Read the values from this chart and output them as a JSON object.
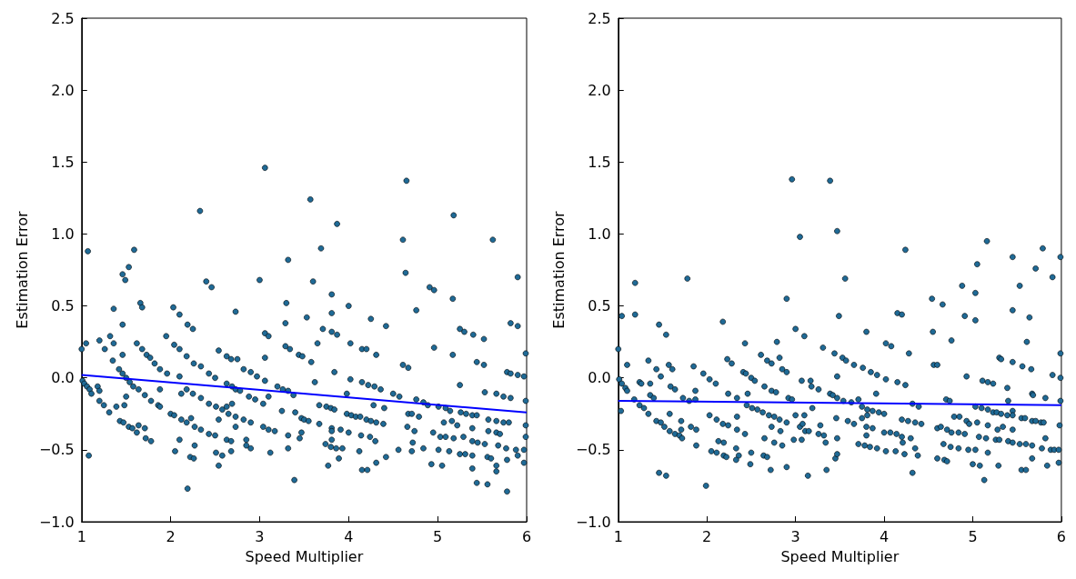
{
  "chart_data": [
    {
      "type": "scatter",
      "xlabel": "Speed Multiplier",
      "ylabel": "Estimation Error",
      "xlim": [
        1,
        6
      ],
      "xticks": [
        1,
        2,
        3,
        4,
        5,
        6
      ],
      "ylim": [
        -1,
        2.5
      ],
      "yticks": [
        {
          "value": -1,
          "label": "−1.0"
        },
        {
          "value": -0.5,
          "label": "−0.5"
        },
        {
          "value": 0,
          "label": "0.0"
        },
        0.5,
        {
          "value": 1,
          "label": "1.0"
        },
        1.5,
        {
          "value": 2,
          "label": "2.0"
        },
        2.5
      ],
      "series": [
        {
          "marker": "circle",
          "color": "#1f6a96",
          "x": [
            1.07,
            1.0,
            1.05,
            1.01,
            1.03,
            1.06,
            1.09,
            1.11,
            1.08,
            1.2,
            1.26,
            1.32,
            1.36,
            1.36,
            1.35,
            1.18,
            1.2,
            1.2,
            1.25,
            1.31,
            1.39,
            1.46,
            1.49,
            1.53,
            1.59,
            1.46,
            1.46,
            1.42,
            1.46,
            1.5,
            1.54,
            1.5,
            1.48,
            1.43,
            1.47,
            1.53,
            1.57,
            1.62,
            1.64,
            1.71,
            1.72,
            1.78,
            1.66,
            1.68,
            1.62,
            1.68,
            1.73,
            1.77,
            1.82,
            1.88,
            1.58,
            1.64,
            1.71,
            1.78,
            1.86,
            1.88,
            1.88,
            1.95,
            1.96,
            2.03,
            2.1,
            2.04,
            2.1,
            2.1,
            2.12,
            2.0,
            2.04,
            2.12,
            2.18,
            2.23,
            2.1,
            2.05,
            2.19,
            2.19,
            2.25,
            2.18,
            2.26,
            2.34,
            2.18,
            2.25,
            2.34,
            2.27,
            2.34,
            2.43,
            2.27,
            2.22,
            2.26,
            2.33,
            2.4,
            2.46,
            2.43,
            2.5,
            2.43,
            2.51,
            2.58,
            2.54,
            2.5,
            2.51,
            2.58,
            2.54,
            2.54,
            2.63,
            2.68,
            2.75,
            2.63,
            2.69,
            2.73,
            2.78,
            2.63,
            2.69,
            2.65,
            2.73,
            2.82,
            2.73,
            2.63,
            2.68,
            2.68,
            2.73,
            2.82,
            2.9,
            2.97,
            2.88,
            2.95,
            3.04,
            2.9,
            3.04,
            3.1,
            3.17,
            2.85,
            2.85,
            2.9,
            3.12,
            3.0,
            3.06,
            3.06,
            3.1,
            3.06,
            3.06,
            3.1,
            3.2,
            3.25,
            3.32,
            3.3,
            3.29,
            3.29,
            3.34,
            3.26,
            3.32,
            3.38,
            3.32,
            3.32,
            3.39,
            3.45,
            3.4,
            3.44,
            3.48,
            3.53,
            3.47,
            3.5,
            3.55,
            3.47,
            3.57,
            3.69,
            3.6,
            3.65,
            3.58,
            3.62,
            3.67,
            3.75,
            3.8,
            3.84,
            3.67,
            3.81,
            3.81,
            3.91,
            4.0,
            3.81,
            3.74,
            3.8,
            3.86,
            3.93,
            3.89,
            3.77,
            3.81,
            3.81,
            3.71,
            3.81,
            3.87,
            3.87,
            4.0,
            3.84,
            4.02,
            4.02,
            3.98,
            3.98,
            4.03,
            4.08,
            4.13,
            4.2,
            4.25,
            4.31,
            4.39,
            4.14,
            4.24,
            4.3,
            4.12,
            4.15,
            4.21,
            4.31,
            4.42,
            4.15,
            4.2,
            4.31,
            4.25,
            4.42,
            4.15,
            4.22,
            4.29,
            4.36,
            4.28,
            4.4,
            4.5,
            4.57,
            4.61,
            4.65,
            4.64,
            4.61,
            4.67,
            4.76,
            4.76,
            4.84,
            4.89,
            4.67,
            4.71,
            4.79,
            4.66,
            4.74,
            4.72,
            4.56,
            4.71,
            4.84,
            4.93,
            5.05,
            4.91,
            4.96,
            4.96,
            5.01,
            5.09,
            5.14,
            4.95,
            5.03,
            5.09,
            5.07,
            5.16,
            5.22,
            5.01,
            5.13,
            5.18,
            5.25,
            5.31,
            5.39,
            5.18,
            5.17,
            5.17,
            5.25,
            5.25,
            5.3,
            5.4,
            5.52,
            5.44,
            5.52,
            5.26,
            5.32,
            5.39,
            5.44,
            5.39,
            5.29,
            5.39,
            5.45,
            5.53,
            5.39,
            5.44,
            5.56,
            5.56,
            5.6,
            5.66,
            5.66,
            5.68,
            5.77,
            5.78,
            5.78,
            5.62,
            5.53,
            5.66,
            5.74,
            5.82,
            5.57,
            5.66,
            5.74,
            5.8,
            5.57,
            5.66,
            5.7,
            5.78,
            5.82,
            5.82,
            5.9,
            5.9,
            5.9,
            5.97,
            5.99,
            5.99,
            5.99,
            5.99,
            5.88,
            5.97,
            5.9,
            5.97
          ],
          "values": [
            0.88,
            0.2,
            0.24,
            -0.02,
            -0.04,
            -0.06,
            -0.08,
            -0.11,
            -0.54,
            0.26,
            0.2,
            0.29,
            0.48,
            0.24,
            0.12,
            -0.06,
            -0.09,
            -0.16,
            -0.19,
            -0.24,
            -0.2,
            0.72,
            0.68,
            0.77,
            0.89,
            0.37,
            0.16,
            0.06,
            0.03,
            0.0,
            -0.03,
            -0.13,
            -0.19,
            -0.3,
            -0.31,
            -0.34,
            -0.35,
            -0.38,
            -0.33,
            -0.35,
            -0.42,
            -0.44,
            0.52,
            0.49,
            0.24,
            0.2,
            0.16,
            0.14,
            0.1,
            0.06,
            -0.06,
            -0.08,
            -0.12,
            -0.16,
            -0.19,
            -0.2,
            -0.08,
            0.29,
            0.03,
            0.49,
            0.44,
            0.23,
            0.2,
            0.01,
            -0.11,
            -0.25,
            -0.26,
            -0.29,
            -0.31,
            -0.28,
            -0.43,
            -0.51,
            -0.77,
            0.37,
            0.34,
            0.15,
            0.1,
            0.08,
            -0.08,
            -0.11,
            -0.14,
            -0.34,
            -0.36,
            -0.39,
            -0.47,
            -0.55,
            -0.56,
            1.16,
            0.67,
            0.63,
            0.03,
            0.0,
            -0.18,
            -0.2,
            -0.22,
            -0.29,
            -0.4,
            -0.52,
            -0.54,
            -0.61,
            0.19,
            0.15,
            0.13,
            0.13,
            -0.04,
            -0.06,
            -0.08,
            -0.09,
            -0.2,
            -0.18,
            -0.25,
            -0.27,
            -0.29,
            -0.34,
            -0.43,
            -0.44,
            -0.51,
            0.46,
            0.06,
            0.04,
            0.01,
            -0.13,
            -0.15,
            -0.18,
            -0.31,
            -0.34,
            -0.36,
            -0.37,
            -0.43,
            -0.47,
            -0.49,
            -0.52,
            0.68,
            1.46,
            0.31,
            0.29,
            0.14,
            -0.02,
            -0.13,
            -0.06,
            -0.23,
            0.82,
            0.52,
            0.38,
            0.22,
            0.2,
            -0.08,
            -0.09,
            -0.12,
            -0.4,
            -0.49,
            -0.71,
            -0.42,
            -0.24,
            0.16,
            0.15,
            0.42,
            -0.28,
            -0.29,
            -0.3,
            -0.38,
            1.24,
            0.9,
            0.67,
            0.24,
            0.11,
            -0.03,
            -0.19,
            -0.2,
            -0.21,
            -0.22,
            -0.32,
            -0.35,
            -0.37,
            -0.36,
            -0.38,
            -0.43,
            -0.46,
            -0.48,
            -0.49,
            -0.49,
            -0.56,
            -0.61,
            0.58,
            0.45,
            0.34,
            0.32,
            0.3,
            1.07,
            0.5,
            0.04,
            0.24,
            -0.01,
            -0.11,
            -0.25,
            -0.26,
            -0.27,
            -0.27,
            -0.29,
            -0.3,
            -0.31,
            -0.32,
            -0.4,
            -0.41,
            -0.44,
            -0.51,
            -0.64,
            -0.64,
            -0.59,
            -0.55,
            0.2,
            0.2,
            0.16,
            0.41,
            0.36,
            -0.03,
            -0.05,
            -0.06,
            -0.08,
            -0.19,
            -0.21,
            -0.11,
            -0.13,
            0.96,
            1.37,
            0.73,
            0.09,
            0.07,
            0.47,
            -0.15,
            -0.17,
            -0.19,
            -0.25,
            -0.25,
            -0.27,
            -0.34,
            -0.37,
            -0.45,
            -0.5,
            -0.51,
            -0.49,
            -0.6,
            -0.61,
            0.63,
            0.61,
            0.21,
            -0.2,
            -0.21,
            -0.23,
            -0.38,
            -0.41,
            -0.41,
            -0.31,
            -0.3,
            -0.33,
            -0.5,
            -0.51,
            -0.42,
            -0.53,
            -0.53,
            -0.54,
            1.13,
            0.55,
            0.16,
            -0.05,
            0.34,
            0.32,
            0.3,
            0.27,
            0.11,
            0.09,
            -0.24,
            -0.25,
            -0.26,
            -0.26,
            -0.35,
            -0.41,
            -0.44,
            -0.45,
            -0.46,
            -0.63,
            -0.73,
            -0.74,
            -0.55,
            -0.56,
            -0.61,
            -0.65,
            -0.47,
            -0.49,
            -0.57,
            -0.79,
            0.96,
            -0.1,
            -0.11,
            -0.13,
            -0.14,
            -0.29,
            -0.3,
            -0.31,
            -0.31,
            -0.37,
            -0.38,
            -0.39,
            0.04,
            0.03,
            0.38,
            0.36,
            0.7,
            0.02,
            0.01,
            0.17,
            -0.16,
            -0.33,
            -0.41,
            -0.5,
            -0.5,
            -0.54,
            -0.59
          ]
        },
        {
          "type": "line",
          "marker": "none",
          "color": "#0000ff",
          "x": [
            1,
            6
          ],
          "values": [
            0.02,
            -0.24
          ]
        }
      ]
    },
    {
      "type": "scatter",
      "xlabel": "Speed Multiplier",
      "ylabel": "Estimation Error",
      "xlim": [
        1,
        6
      ],
      "xticks": [
        1,
        2,
        3,
        4,
        5,
        6
      ],
      "ylim": [
        -1,
        2.5
      ],
      "yticks": [
        {
          "value": -1,
          "label": "−1.0"
        },
        {
          "value": -0.5,
          "label": "−0.5"
        },
        {
          "value": 0,
          "label": "0.0"
        },
        0.5,
        {
          "value": 1,
          "label": "1.0"
        },
        1.5,
        {
          "value": 2,
          "label": "2.0"
        },
        2.5
      ],
      "series": [
        {
          "marker": "circle",
          "color": "#1f6a96",
          "x": [
            1.0,
            1.04,
            1.19,
            1.19,
            1.1,
            1.01,
            1.04,
            1.08,
            1.1,
            1.03,
            1.18,
            1.24,
            1.26,
            1.24,
            1.29,
            1.34,
            1.34,
            1.36,
            1.36,
            1.4,
            1.43,
            1.48,
            1.46,
            1.54,
            1.57,
            1.61,
            1.59,
            1.64,
            1.43,
            1.48,
            1.52,
            1.58,
            1.58,
            1.64,
            1.69,
            1.72,
            1.71,
            1.71,
            1.46,
            1.54,
            1.73,
            1.78,
            1.8,
            1.85,
            1.87,
            1.87,
            1.82,
            1.88,
            1.88,
            1.96,
            2.03,
            2.03,
            2.1,
            2.11,
            2.05,
            2.11,
            2.13,
            2.19,
            2.19,
            2.22,
            1.99,
            2.18,
            2.23,
            2.28,
            2.24,
            2.34,
            2.18,
            2.24,
            2.34,
            2.34,
            2.43,
            2.41,
            2.44,
            2.5,
            2.54,
            2.46,
            2.45,
            2.51,
            2.57,
            2.63,
            2.7,
            2.76,
            2.82,
            2.9,
            2.33,
            2.36,
            2.33,
            2.43,
            2.5,
            2.49,
            2.61,
            2.68,
            2.73,
            2.65,
            2.73,
            2.78,
            2.65,
            2.64,
            2.68,
            2.73,
            2.76,
            2.72,
            2.79,
            2.82,
            2.85,
            2.9,
            2.92,
            2.96,
            2.83,
            2.85,
            2.9,
            2.9,
            2.96,
            3.05,
            3.0,
            3.1,
            3.07,
            3.0,
            2.98,
            3.05,
            3.08,
            3.1,
            3.11,
            3.15,
            3.07,
            3.14,
            3.17,
            3.19,
            3.18,
            3.26,
            3.28,
            3.26,
            3.31,
            3.32,
            3.34,
            3.35,
            3.39,
            3.42,
            3.39,
            3.44,
            3.46,
            3.45,
            3.47,
            3.47,
            3.56,
            3.49,
            3.53,
            3.57,
            3.47,
            3.47,
            3.54,
            3.63,
            3.71,
            3.59,
            3.66,
            3.47,
            3.66,
            3.76,
            3.85,
            3.92,
            4.02,
            4.15,
            4.24,
            3.91,
            3.75,
            3.81,
            3.87,
            3.94,
            4.0,
            3.75,
            3.81,
            3.8,
            3.87,
            3.8,
            3.71,
            3.78,
            3.84,
            3.92,
            4.02,
            4.0,
            4.07,
            4.14,
            4.2,
            4.27,
            4.35,
            4.42,
            4.2,
            4.3,
            4.21,
            4.13,
            4.23,
            4.35,
            4.38,
            4.32,
            3.8,
            4.02,
            4.08,
            4.15,
            4.2,
            4.24,
            4.28,
            4.32,
            4.39,
            4.54,
            4.55,
            4.56,
            4.6,
            4.66,
            4.76,
            4.7,
            4.74,
            4.79,
            4.85,
            4.6,
            4.64,
            4.71,
            4.76,
            4.84,
            4.91,
            4.67,
            4.75,
            4.84,
            4.6,
            4.68,
            4.71,
            4.88,
            4.91,
            4.93,
            4.93,
            4.96,
            4.95,
            5.03,
            5.0,
            5.03,
            5.05,
            5.03,
            5.16,
            5.03,
            5.1,
            5.17,
            5.23,
            5.05,
            5.11,
            5.17,
            5.23,
            5.07,
            5.15,
            5.17,
            5.08,
            5.13,
            5.17,
            5.26,
            5.3,
            5.28,
            5.34,
            5.29,
            5.3,
            5.32,
            5.39,
            5.4,
            5.27,
            5.32,
            5.39,
            5.45,
            5.45,
            5.45,
            5.4,
            5.45,
            5.45,
            5.45,
            5.45,
            5.53,
            5.56,
            5.55,
            5.59,
            5.53,
            5.6,
            5.55,
            5.6,
            5.61,
            5.64,
            5.66,
            5.67,
            5.68,
            5.67,
            5.71,
            5.67,
            5.67,
            5.71,
            5.79,
            5.77,
            5.8,
            5.78,
            5.82,
            5.82,
            5.84,
            5.9,
            5.9,
            5.88,
            5.92,
            5.97,
            5.99,
            5.99,
            5.99,
            5.99,
            5.98,
            5.97
          ],
          "values": [
            0.2,
            0.43,
            0.66,
            0.44,
            0.09,
            -0.01,
            -0.04,
            -0.07,
            -0.09,
            -0.23,
            -0.15,
            -0.03,
            -0.04,
            -0.19,
            -0.21,
            -0.25,
            0.12,
            -0.04,
            -0.12,
            -0.14,
            0.06,
            0.01,
            0.37,
            0.3,
            0.09,
            0.06,
            -0.06,
            -0.08,
            -0.3,
            -0.31,
            -0.34,
            -0.25,
            -0.37,
            -0.39,
            -0.4,
            -0.42,
            -0.3,
            -0.36,
            -0.66,
            -0.68,
            -0.14,
            0.69,
            -0.16,
            0.08,
            -0.09,
            -0.15,
            -0.34,
            -0.36,
            -0.47,
            0.03,
            -0.01,
            -0.26,
            -0.04,
            -0.29,
            -0.51,
            -0.52,
            -0.44,
            -0.45,
            -0.54,
            -0.55,
            -0.75,
            0.39,
            0.13,
            0.1,
            -0.11,
            -0.14,
            -0.32,
            -0.33,
            -0.27,
            -0.36,
            0.24,
            0.04,
            0.03,
            0.0,
            -0.02,
            -0.11,
            -0.19,
            -0.21,
            -0.22,
            -0.24,
            -0.26,
            -0.27,
            -0.29,
            -0.31,
            -0.49,
            -0.54,
            -0.57,
            -0.39,
            -0.52,
            -0.6,
            0.16,
            0.12,
            0.1,
            -0.06,
            -0.09,
            -0.1,
            -0.42,
            -0.54,
            -0.55,
            -0.34,
            -0.45,
            -0.64,
            0.25,
            0.14,
            0.06,
            0.04,
            -0.14,
            -0.15,
            -0.37,
            -0.47,
            -0.62,
            0.55,
            1.38,
            0.98,
            0.34,
            0.29,
            -0.02,
            -0.26,
            -0.43,
            -0.34,
            -0.32,
            -0.26,
            -0.37,
            -0.37,
            -0.43,
            -0.68,
            -0.02,
            -0.21,
            -0.06,
            -0.08,
            -0.33,
            -0.39,
            0.21,
            -0.4,
            -0.45,
            -0.64,
            -0.11,
            -0.12,
            1.37,
            0.17,
            -0.28,
            -0.56,
            -0.53,
            1.02,
            0.69,
            0.43,
            0.14,
            0.12,
            0.01,
            -0.14,
            -0.16,
            -0.17,
            -0.15,
            -0.3,
            -0.32,
            -0.42,
            0.09,
            0.07,
            0.04,
            0.02,
            -0.01,
            -0.03,
            -0.05,
            -0.11,
            -0.2,
            -0.22,
            -0.23,
            -0.24,
            -0.25,
            -0.28,
            -0.26,
            -0.34,
            -0.35,
            -0.4,
            -0.46,
            -0.47,
            -0.48,
            -0.49,
            -0.51,
            -0.38,
            -0.38,
            -0.39,
            -0.29,
            -0.3,
            -0.31,
            -0.32,
            -0.41,
            -0.42,
            -0.45,
            -0.51,
            -0.53,
            -0.49,
            -0.54,
            -0.66,
            0.32,
            0.24,
            0.22,
            0.45,
            0.44,
            0.89,
            0.17,
            -0.18,
            -0.2,
            0.55,
            0.32,
            0.09,
            0.09,
            0.51,
            0.26,
            -0.15,
            -0.16,
            -0.27,
            -0.27,
            -0.35,
            -0.34,
            -0.36,
            -0.38,
            -0.38,
            -0.39,
            -0.46,
            -0.48,
            -0.49,
            -0.56,
            -0.57,
            -0.58,
            0.64,
            0.43,
            0.01,
            -0.3,
            -0.32,
            -0.5,
            -0.5,
            -0.6,
            0.59,
            0.79,
            0.4,
            0.95,
            -0.2,
            -0.21,
            -0.22,
            -0.24,
            -0.31,
            -0.02,
            -0.03,
            -0.04,
            -0.41,
            -0.42,
            -0.33,
            -0.61,
            -0.71,
            -0.52,
            -0.43,
            -0.43,
            -0.36,
            -0.34,
            -0.61,
            0.14,
            0.13,
            -0.07,
            -0.16,
            -0.24,
            -0.25,
            -0.26,
            -0.23,
            -0.26,
            -0.36,
            -0.44,
            -0.45,
            0.84,
            0.47,
            0.11,
            0.64,
            0.08,
            -0.28,
            -0.28,
            -0.46,
            -0.46,
            -0.64,
            -0.64,
            0.25,
            0.42,
            0.06,
            -0.11,
            -0.12,
            -0.3,
            -0.3,
            -0.47,
            -0.56,
            0.76,
            0.9,
            -0.31,
            -0.31,
            -0.49,
            -0.14,
            -0.42,
            -0.61,
            0.7,
            0.02,
            -0.5,
            -0.5,
            -0.59,
            0.84,
            0.17,
            0.0,
            -0.16,
            -0.33,
            -0.5
          ]
        },
        {
          "type": "line",
          "marker": "none",
          "color": "#0000ff",
          "x": [
            1,
            6
          ],
          "values": [
            -0.16,
            -0.19
          ]
        }
      ]
    }
  ]
}
